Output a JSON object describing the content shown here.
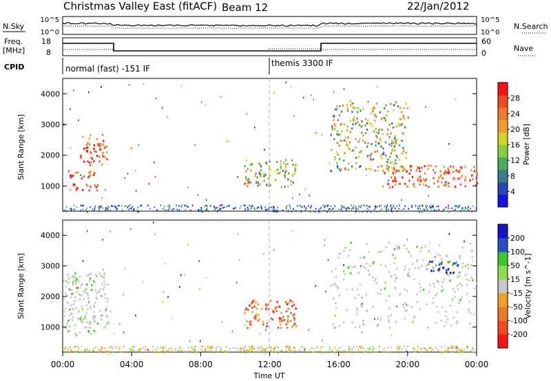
{
  "header": {
    "title": "Christmas Valley East (fitACF)",
    "beam": "Beam 12",
    "date": "22/Jan/2012"
  },
  "top_panels": {
    "nsky_label": "N.Sky",
    "nsearch_label": "N.Search",
    "nsky_ticks": [
      "10^5",
      "10^0"
    ],
    "nsearch_ticks": [
      "10^5",
      "10^0"
    ],
    "freq_label": "Freq.",
    "freq_unit": "[MHz]",
    "freq_ticks": [
      "18",
      "8"
    ],
    "nave_label": "Nave",
    "nave_ticks": [
      "60",
      "0"
    ],
    "cpid_label": "CPID",
    "cpid_segments": [
      {
        "label": "normal (fast) -151 IF",
        "start_hour": 0
      },
      {
        "label": "themis 3300 IF",
        "start_hour": 12
      }
    ]
  },
  "chart_data": [
    {
      "type": "heatmap",
      "title": "",
      "quantity": "Power",
      "xlabel": "",
      "ylabel": "Slant Range [km]",
      "xlim": [
        0,
        24
      ],
      "ylim": [
        180,
        4500
      ],
      "yticks": [
        "1000",
        "2000",
        "3000",
        "4000"
      ],
      "colorbar": {
        "label": "Power [dB]",
        "ticks": [
          "4",
          "8",
          "12",
          "16",
          "20",
          "24",
          "28"
        ],
        "colors": [
          "#1414e0",
          "#2846b4",
          "#3c7a8c",
          "#4caa5a",
          "#84d040",
          "#d2d228",
          "#f0a028",
          "#f07828",
          "#f04a1e",
          "#ff1010"
        ]
      },
      "features": [
        {
          "t": [
            0.0,
            1.8
          ],
          "r": [
            1250,
            1550
          ],
          "level": "high"
        },
        {
          "t": [
            1.0,
            2.6
          ],
          "r": [
            1700,
            2700
          ],
          "level": "high"
        },
        {
          "t": [
            0.0,
            2.0
          ],
          "r": [
            880,
            1100
          ],
          "level": "high"
        },
        {
          "t": [
            10.5,
            13.5
          ],
          "r": [
            1000,
            1900
          ],
          "level": "medium"
        },
        {
          "t": [
            15.5,
            20.0
          ],
          "r": [
            1500,
            3800
          ],
          "level": "medium"
        },
        {
          "t": [
            18.5,
            24.0
          ],
          "r": [
            1000,
            1700
          ],
          "level": "high"
        }
      ]
    },
    {
      "type": "heatmap",
      "title": "",
      "quantity": "Velocity",
      "xlabel": "Time UT",
      "ylabel": "Slant Range [km]",
      "x_tick_labels": [
        "00:00",
        "04:00",
        "08:00",
        "12:00",
        "16:00",
        "20:00",
        "00:00"
      ],
      "xlim": [
        0,
        24
      ],
      "ylim": [
        180,
        4500
      ],
      "yticks": [
        "1000",
        "2000",
        "3000",
        "4000"
      ],
      "colorbar": {
        "label": "Velocity [m s^-1]",
        "ticks": [
          "200",
          "100",
          "50",
          "15",
          "-15",
          "-50",
          "-100",
          "-200"
        ],
        "colors": [
          "#1414c8",
          "#2850c8",
          "#3cc828",
          "#8cdc50",
          "#c8c8c8",
          "#f0a028",
          "#f07828",
          "#f04a1e",
          "#ff1010"
        ]
      },
      "features": [
        {
          "t": [
            0.0,
            2.6
          ],
          "r": [
            800,
            2800
          ],
          "level": "ground"
        },
        {
          "t": [
            10.5,
            13.5
          ],
          "r": [
            1000,
            1900
          ],
          "level": "negative"
        },
        {
          "t": [
            15.5,
            24.0
          ],
          "r": [
            1000,
            3800
          ],
          "level": "ground"
        },
        {
          "t": [
            21.0,
            23.0
          ],
          "r": [
            2800,
            3200
          ],
          "level": "positive"
        }
      ]
    }
  ]
}
